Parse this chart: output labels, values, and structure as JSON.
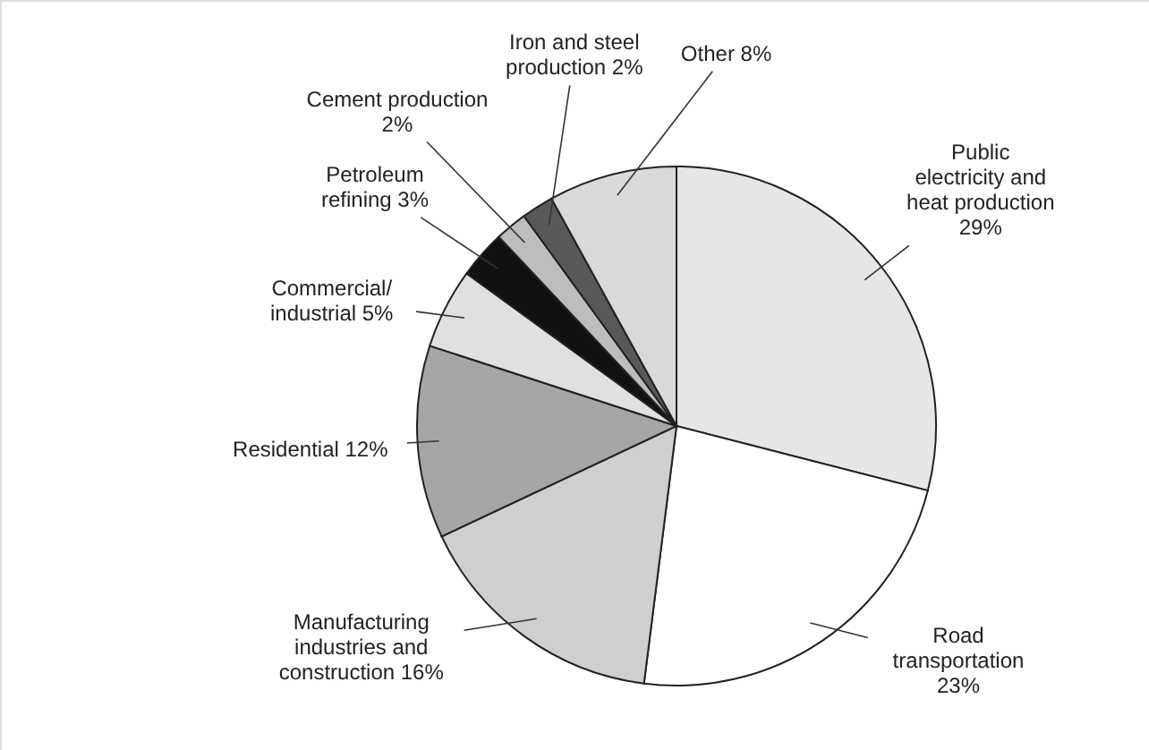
{
  "chart_data": {
    "type": "pie",
    "categories": [
      "Public electricity and heat production",
      "Road transportation",
      "Manufacturing industries and construction",
      "Residential",
      "Commercial/ industrial",
      "Petroleum refining",
      "Cement production",
      "Iron and steel production",
      "Other"
    ],
    "values": [
      29,
      23,
      16,
      12,
      5,
      3,
      2,
      2,
      8
    ],
    "value_labels": [
      "29%",
      "23%",
      "16%",
      "12%",
      "5%",
      "3%",
      "2%",
      "2%",
      "8%"
    ],
    "colors": [
      "#e6e6e6",
      "#ffffff",
      "#cfcfcf",
      "#a6a6a6",
      "#e0e0e0",
      "#111111",
      "#bdbdbd",
      "#595959",
      "#d9d9d9"
    ]
  }
}
